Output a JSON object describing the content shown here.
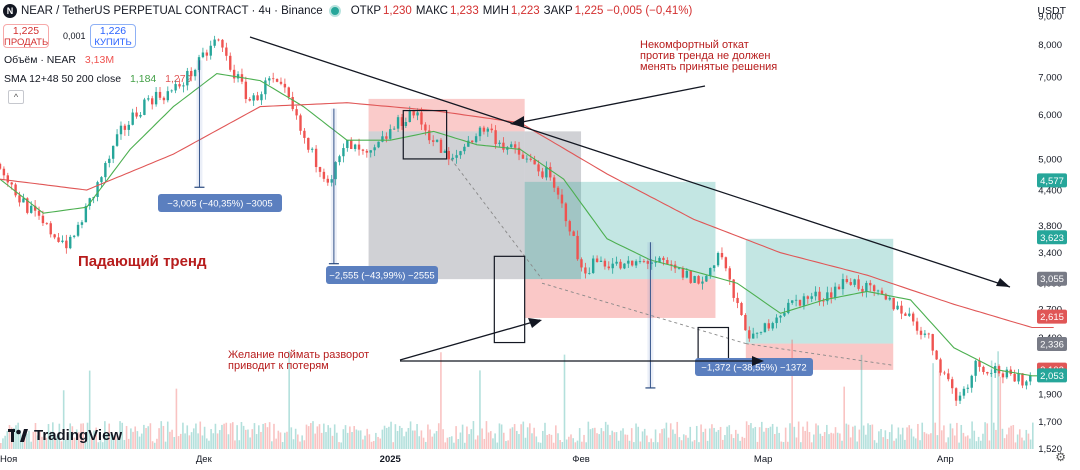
{
  "header": {
    "symbol_icon": "N",
    "title": "NEAR / TetherUS PERPETUAL CONTRACT · 4ч · Binance",
    "ohlc": [
      {
        "label": "ОТКР",
        "value": "1,230"
      },
      {
        "label": "МАКС",
        "value": "1,233"
      },
      {
        "label": "МИН",
        "value": "1,223"
      },
      {
        "label": "ЗАКР",
        "value": "1,225 −0,005 (−0,41%)"
      }
    ],
    "currency": "USDT"
  },
  "trade": {
    "sell_price": "1,225",
    "sell_label": "ПРОДАТЬ",
    "spread": "0,001",
    "buy_price": "1,226",
    "buy_label": "КУПИТЬ"
  },
  "indicators": {
    "volume_label": "Объём · NEAR",
    "volume_value": "3,13M",
    "sma_label": "SMA 12+48 50 200 close",
    "sma_val1": "1,184",
    "sma_val2": "1,279"
  },
  "branding": {
    "logo_text": "TradingView"
  },
  "colors": {
    "up": "#26a69a",
    "down": "#ef5350",
    "sma_green": "#4caf50",
    "sma_red": "#e05656",
    "annotation": "#b71c1c",
    "label_box": "#5b7fbf"
  },
  "chart_data": {
    "type": "candlestick",
    "title": "",
    "y_scale": "log",
    "ylim": [
      1.48,
      9.3
    ],
    "x_ticks": [
      "Ноя",
      "Дек",
      "2025",
      "Фев",
      "Мар",
      "Апр"
    ],
    "y_ticks": [
      "9,000",
      "8,000",
      "7,000",
      "6,000",
      "5,000",
      "4,400",
      "3,800",
      "3,400",
      "3,000",
      "2,700",
      "2,400",
      "2,100",
      "1,900",
      "1,700",
      "1,520"
    ],
    "price_badges": [
      {
        "value": "4,577",
        "color": "#26a69a"
      },
      {
        "value": "3,623",
        "color": "#26a69a"
      },
      {
        "value": "3,055",
        "color": "#787b86"
      },
      {
        "value": "2,615",
        "color": "#e05656"
      },
      {
        "value": "2,336",
        "color": "#787b86"
      },
      {
        "value": "2,102",
        "color": "#e05656"
      },
      {
        "value": "2,053",
        "color": "#26a69a"
      }
    ],
    "price_path": [
      {
        "t": 0,
        "v": 4.9
      },
      {
        "t": 4,
        "v": 4.3
      },
      {
        "t": 10,
        "v": 3.8
      },
      {
        "t": 16,
        "v": 3.5
      },
      {
        "t": 22,
        "v": 4.4
      },
      {
        "t": 28,
        "v": 5.6
      },
      {
        "t": 34,
        "v": 6.4
      },
      {
        "t": 40,
        "v": 6.6
      },
      {
        "t": 46,
        "v": 7.4
      },
      {
        "t": 50,
        "v": 8.2
      },
      {
        "t": 54,
        "v": 7.1
      },
      {
        "t": 58,
        "v": 6.3
      },
      {
        "t": 62,
        "v": 6.9
      },
      {
        "t": 66,
        "v": 6.5
      },
      {
        "t": 71,
        "v": 5.2
      },
      {
        "t": 76,
        "v": 4.6
      },
      {
        "t": 80,
        "v": 5.3
      },
      {
        "t": 85,
        "v": 5.0
      },
      {
        "t": 90,
        "v": 5.6
      },
      {
        "t": 95,
        "v": 6.1
      },
      {
        "t": 100,
        "v": 5.4
      },
      {
        "t": 104,
        "v": 4.9
      },
      {
        "t": 108,
        "v": 5.4
      },
      {
        "t": 112,
        "v": 5.7
      },
      {
        "t": 116,
        "v": 5.3
      },
      {
        "t": 121,
        "v": 5.0
      },
      {
        "t": 126,
        "v": 4.7
      },
      {
        "t": 131,
        "v": 3.9
      },
      {
        "t": 134,
        "v": 3.15
      },
      {
        "t": 138,
        "v": 3.3
      },
      {
        "t": 144,
        "v": 3.2
      },
      {
        "t": 150,
        "v": 3.3
      },
      {
        "t": 156,
        "v": 3.15
      },
      {
        "t": 162,
        "v": 3.0
      },
      {
        "t": 166,
        "v": 3.45
      },
      {
        "t": 170,
        "v": 2.7
      },
      {
        "t": 174,
        "v": 2.35
      },
      {
        "t": 178,
        "v": 2.6
      },
      {
        "t": 184,
        "v": 2.8
      },
      {
        "t": 190,
        "v": 2.85
      },
      {
        "t": 196,
        "v": 3.05
      },
      {
        "t": 202,
        "v": 2.85
      },
      {
        "t": 208,
        "v": 2.7
      },
      {
        "t": 214,
        "v": 2.4
      },
      {
        "t": 218,
        "v": 2.05
      },
      {
        "t": 221,
        "v": 1.85
      },
      {
        "t": 225,
        "v": 2.15
      },
      {
        "t": 230,
        "v": 2.1
      },
      {
        "t": 234,
        "v": 2.0
      },
      {
        "t": 238,
        "v": 2.05
      }
    ],
    "sma_fast": [
      {
        "t": 0,
        "v": 4.6
      },
      {
        "t": 10,
        "v": 4.0
      },
      {
        "t": 20,
        "v": 4.1
      },
      {
        "t": 30,
        "v": 5.2
      },
      {
        "t": 40,
        "v": 6.2
      },
      {
        "t": 50,
        "v": 7.1
      },
      {
        "t": 60,
        "v": 6.9
      },
      {
        "t": 70,
        "v": 6.2
      },
      {
        "t": 80,
        "v": 5.4
      },
      {
        "t": 90,
        "v": 5.4
      },
      {
        "t": 100,
        "v": 5.6
      },
      {
        "t": 110,
        "v": 5.3
      },
      {
        "t": 120,
        "v": 5.2
      },
      {
        "t": 130,
        "v": 4.6
      },
      {
        "t": 140,
        "v": 3.6
      },
      {
        "t": 150,
        "v": 3.3
      },
      {
        "t": 160,
        "v": 3.15
      },
      {
        "t": 170,
        "v": 3.0
      },
      {
        "t": 180,
        "v": 2.65
      },
      {
        "t": 190,
        "v": 2.8
      },
      {
        "t": 200,
        "v": 2.9
      },
      {
        "t": 210,
        "v": 2.8
      },
      {
        "t": 220,
        "v": 2.3
      },
      {
        "t": 230,
        "v": 2.1
      },
      {
        "t": 238,
        "v": 2.05
      }
    ],
    "sma_slow": [
      {
        "t": 0,
        "v": 4.6
      },
      {
        "t": 20,
        "v": 4.4
      },
      {
        "t": 40,
        "v": 5.1
      },
      {
        "t": 60,
        "v": 6.2
      },
      {
        "t": 80,
        "v": 6.3
      },
      {
        "t": 100,
        "v": 6.1
      },
      {
        "t": 120,
        "v": 5.8
      },
      {
        "t": 140,
        "v": 4.7
      },
      {
        "t": 160,
        "v": 3.9
      },
      {
        "t": 180,
        "v": 3.4
      },
      {
        "t": 200,
        "v": 3.1
      },
      {
        "t": 220,
        "v": 2.75
      },
      {
        "t": 238,
        "v": 2.5
      }
    ],
    "measure_labels": [
      {
        "text": "−3,005 (−40,35%) −3005"
      },
      {
        "text": "−2,555 (−43,99%) −2555"
      },
      {
        "text": "−1,372 (−38,55%) −1372"
      }
    ],
    "annotations": [
      {
        "text": "Некомфортный откат\nпротив тренда не должен\nменять принятые решения"
      },
      {
        "text": "Падающий тренд"
      },
      {
        "text": "Желание поймать разворот\nприводит к потерям"
      }
    ]
  }
}
